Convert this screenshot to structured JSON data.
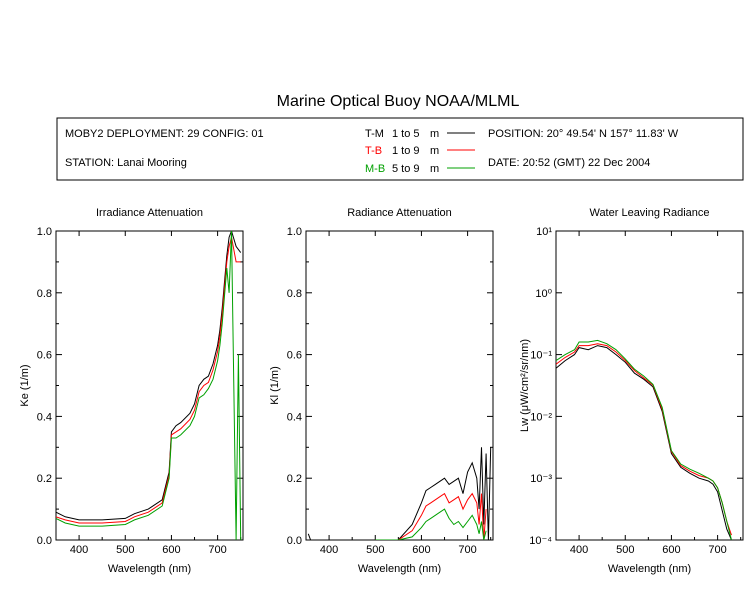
{
  "title": "Marine Optical Buoy NOAA/MLML",
  "info": {
    "deployment": "MOBY2 DEPLOYMENT: 29 CONFIG: 01",
    "station": "STATION: Lanai Mooring",
    "position": "POSITION: 20° 49.54' N   157° 11.83' W",
    "date": "DATE: 20:52 (GMT) 22 Dec 2004",
    "legend": [
      {
        "code": "T-M",
        "range": "1 to 5",
        "unit": "m",
        "color": "#000000"
      },
      {
        "code": "T-B",
        "range": "1 to 9",
        "unit": "m",
        "color": "#ff0000"
      },
      {
        "code": "M-B",
        "range": "5 to 9",
        "unit": "m",
        "color": "#00a000"
      }
    ]
  },
  "chart_data": [
    {
      "type": "line",
      "title": "Irradiance Attenuation",
      "xlabel": "Wavelength (nm)",
      "ylabel": "Ke  (1/m)",
      "xlim": [
        350,
        755
      ],
      "ylim": [
        0,
        1
      ],
      "xticks": [
        400,
        500,
        600,
        700
      ],
      "xtick_labels": [
        "400",
        "500",
        "600",
        "700"
      ],
      "yticks": [
        0,
        0.2,
        0.4,
        0.6,
        0.8,
        1.0
      ],
      "ytick_labels": [
        "0.0",
        "0.2",
        "0.4",
        "0.6",
        "0.8",
        "1.0"
      ],
      "series": [
        {
          "name": "T-M",
          "color": "#000000",
          "x": [
            350,
            370,
            400,
            450,
            500,
            520,
            550,
            580,
            595,
            600,
            610,
            620,
            640,
            650,
            660,
            670,
            680,
            690,
            700,
            705,
            710,
            720,
            725,
            730,
            740,
            750
          ],
          "y": [
            0.09,
            0.075,
            0.065,
            0.065,
            0.07,
            0.085,
            0.1,
            0.13,
            0.22,
            0.35,
            0.37,
            0.38,
            0.41,
            0.44,
            0.5,
            0.52,
            0.53,
            0.57,
            0.63,
            0.68,
            0.75,
            0.92,
            0.98,
            1.0,
            0.95,
            0.93
          ]
        },
        {
          "name": "T-B",
          "color": "#ff0000",
          "x": [
            350,
            370,
            400,
            450,
            500,
            520,
            550,
            580,
            595,
            600,
            610,
            620,
            640,
            650,
            660,
            670,
            680,
            690,
            700,
            705,
            710,
            720,
            725,
            730,
            740,
            750
          ],
          "y": [
            0.075,
            0.065,
            0.055,
            0.055,
            0.06,
            0.075,
            0.09,
            0.12,
            0.21,
            0.34,
            0.35,
            0.36,
            0.39,
            0.42,
            0.48,
            0.5,
            0.51,
            0.55,
            0.61,
            0.66,
            0.73,
            0.9,
            0.95,
            0.98,
            0.9,
            0.9
          ]
        },
        {
          "name": "M-B",
          "color": "#00a000",
          "x": [
            350,
            370,
            400,
            450,
            500,
            520,
            550,
            580,
            595,
            600,
            610,
            620,
            640,
            650,
            660,
            670,
            680,
            690,
            700,
            705,
            710,
            720,
            725,
            730,
            735,
            740,
            745,
            750
          ],
          "y": [
            0.07,
            0.055,
            0.045,
            0.045,
            0.05,
            0.065,
            0.08,
            0.11,
            0.2,
            0.33,
            0.33,
            0.34,
            0.37,
            0.4,
            0.46,
            0.47,
            0.49,
            0.52,
            0.58,
            0.63,
            0.7,
            0.88,
            0.8,
            1.0,
            0.5,
            0.0,
            0.6,
            0.0
          ]
        }
      ]
    },
    {
      "type": "line",
      "title": "Radiance Attenuation",
      "xlabel": "Wavelength (nm)",
      "ylabel": "Kl  (1/m)",
      "xlim": [
        350,
        755
      ],
      "ylim": [
        0,
        1
      ],
      "xticks": [
        400,
        500,
        600,
        700
      ],
      "xtick_labels": [
        "400",
        "500",
        "600",
        "700"
      ],
      "yticks": [
        0,
        0.2,
        0.4,
        0.6,
        0.8,
        1.0
      ],
      "ytick_labels": [
        "0.0",
        "0.2",
        "0.4",
        "0.6",
        "0.8",
        "1.0"
      ],
      "series": [
        {
          "name": "T-M",
          "color": "#000000",
          "x": [
            355,
            360,
            500,
            550,
            580,
            600,
            610,
            620,
            630,
            640,
            650,
            660,
            670,
            680,
            690,
            700,
            710,
            720,
            725,
            730,
            735,
            740,
            745,
            750
          ],
          "y": [
            0.02,
            0.0,
            0.0,
            0.0,
            0.05,
            0.12,
            0.16,
            0.17,
            0.18,
            0.19,
            0.2,
            0.18,
            0.19,
            0.2,
            0.15,
            0.22,
            0.25,
            0.2,
            0.1,
            0.3,
            0.05,
            0.28,
            0.0,
            0.3
          ]
        },
        {
          "name": "T-B",
          "color": "#ff0000",
          "x": [
            500,
            550,
            580,
            600,
            610,
            620,
            630,
            640,
            650,
            660,
            670,
            680,
            690,
            700,
            710,
            720,
            725,
            730,
            735,
            740
          ],
          "y": [
            0.0,
            0.0,
            0.03,
            0.08,
            0.11,
            0.12,
            0.13,
            0.14,
            0.15,
            0.12,
            0.13,
            0.14,
            0.1,
            0.13,
            0.15,
            0.12,
            0.05,
            0.15,
            0.0,
            0.1
          ]
        },
        {
          "name": "M-B",
          "color": "#00a000",
          "x": [
            500,
            550,
            580,
            600,
            610,
            620,
            630,
            640,
            650,
            660,
            670,
            680,
            690,
            700,
            710,
            720,
            725,
            730,
            735,
            740
          ],
          "y": [
            0.0,
            0.0,
            0.01,
            0.04,
            0.06,
            0.07,
            0.08,
            0.09,
            0.1,
            0.07,
            0.05,
            0.06,
            0.04,
            0.06,
            0.08,
            0.05,
            0.02,
            0.06,
            0.0,
            0.03
          ]
        }
      ]
    },
    {
      "type": "line",
      "title": "Water Leaving Radiance",
      "xlabel": "Wavelength (nm)",
      "ylabel": "Lw  (μW/cm²/sr/nm)",
      "yscale": "log",
      "xlim": [
        350,
        755
      ],
      "ylim": [
        0.0001,
        10
      ],
      "xticks": [
        400,
        500,
        600,
        700
      ],
      "xtick_labels": [
        "400",
        "500",
        "600",
        "700"
      ],
      "yticks": [
        0.0001,
        0.001,
        0.01,
        0.1,
        1,
        10
      ],
      "ytick_labels": [
        "10⁻⁴",
        "10⁻³",
        "10⁻²",
        "10⁻¹",
        "10⁰",
        "10¹"
      ],
      "series": [
        {
          "name": "T-M",
          "color": "#000000",
          "x": [
            350,
            370,
            390,
            400,
            420,
            440,
            460,
            480,
            500,
            520,
            540,
            560,
            580,
            600,
            620,
            640,
            660,
            680,
            690,
            700,
            710,
            720,
            730
          ],
          "y": [
            0.06,
            0.08,
            0.1,
            0.13,
            0.12,
            0.14,
            0.13,
            0.1,
            0.075,
            0.05,
            0.04,
            0.03,
            0.012,
            0.0025,
            0.0015,
            0.0012,
            0.001,
            0.0009,
            0.0008,
            0.0006,
            0.0003,
            0.00015,
            0.0001
          ]
        },
        {
          "name": "T-B",
          "color": "#ff0000",
          "x": [
            350,
            370,
            390,
            400,
            420,
            440,
            460,
            480,
            500,
            520,
            540,
            560,
            580,
            600,
            620,
            640,
            660,
            680,
            690,
            700,
            710,
            720,
            730
          ],
          "y": [
            0.07,
            0.09,
            0.11,
            0.14,
            0.14,
            0.15,
            0.14,
            0.11,
            0.08,
            0.055,
            0.042,
            0.032,
            0.013,
            0.0027,
            0.0016,
            0.0013,
            0.0011,
            0.001,
            0.0009,
            0.0007,
            0.0004,
            0.0002,
            0.00012
          ]
        },
        {
          "name": "M-B",
          "color": "#00a000",
          "x": [
            350,
            370,
            390,
            400,
            420,
            440,
            460,
            480,
            500,
            520,
            540,
            560,
            580,
            600,
            620,
            640,
            660,
            680,
            690,
            700,
            710,
            720,
            730
          ],
          "y": [
            0.08,
            0.1,
            0.12,
            0.16,
            0.16,
            0.17,
            0.15,
            0.12,
            0.085,
            0.058,
            0.045,
            0.033,
            0.014,
            0.0028,
            0.0017,
            0.0014,
            0.0012,
            0.001,
            0.0009,
            0.0007,
            0.0004,
            0.0002,
            0.0001
          ]
        }
      ]
    }
  ]
}
